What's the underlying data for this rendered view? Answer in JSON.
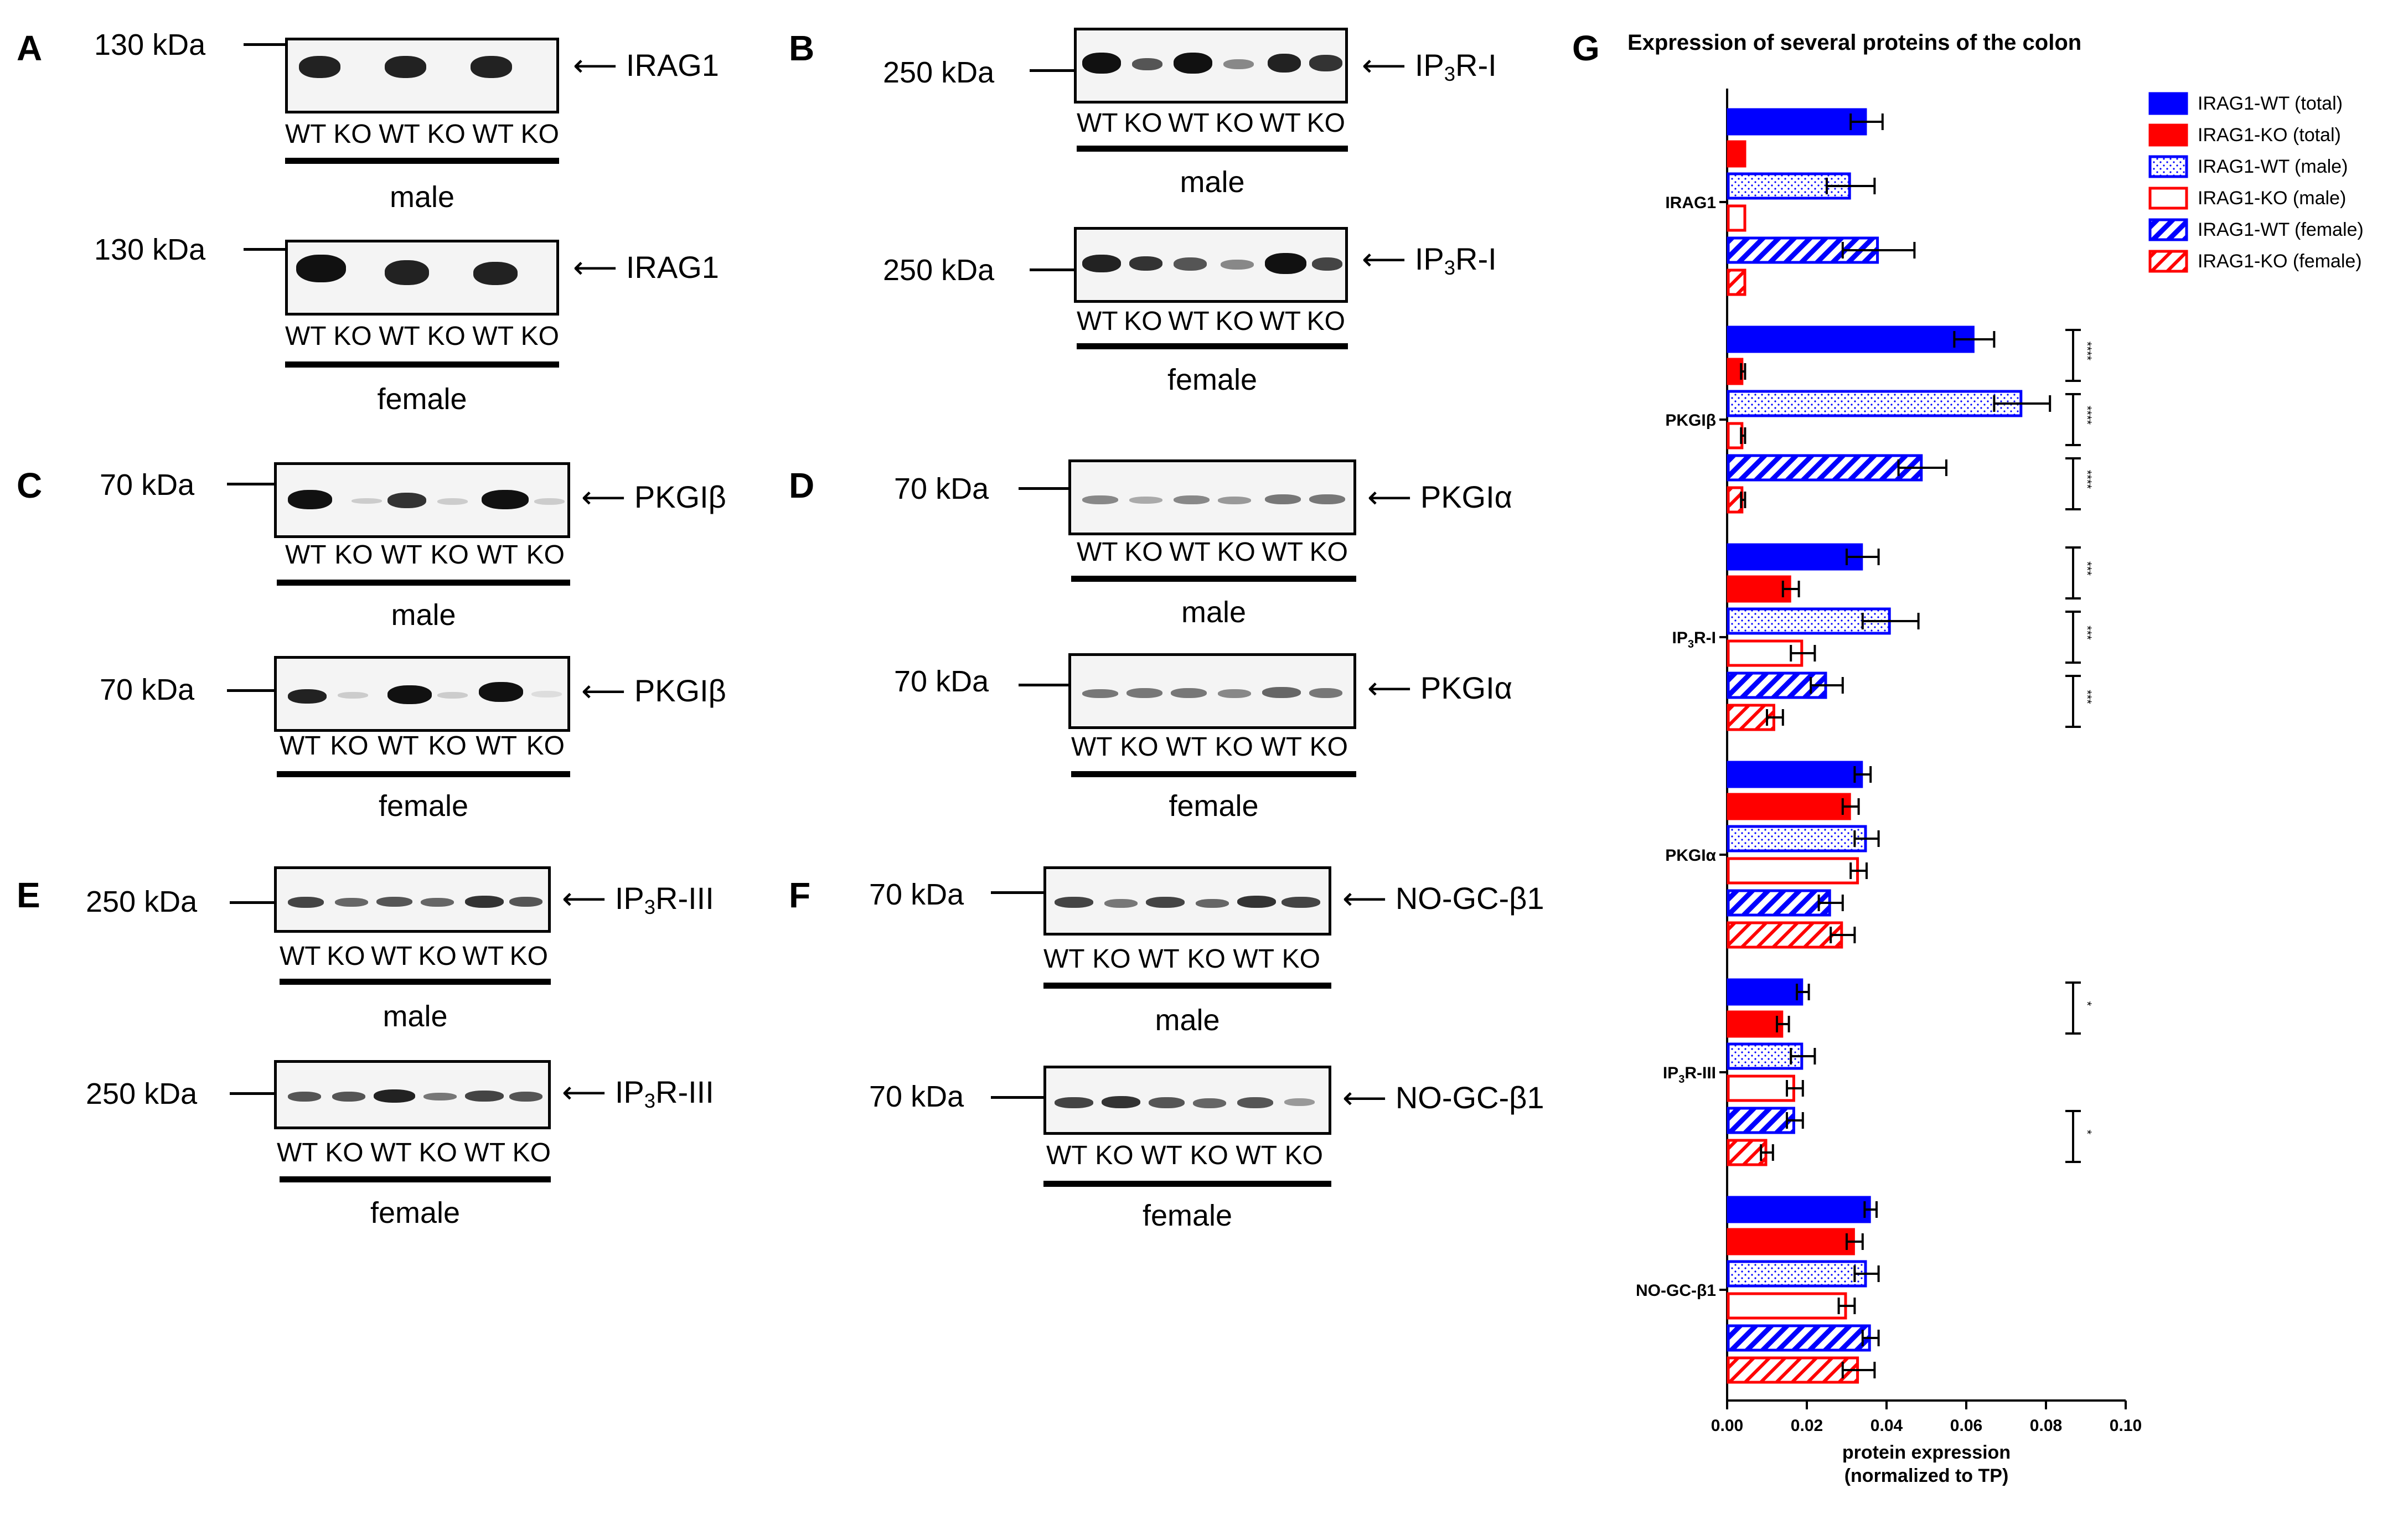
{
  "panels": [
    {
      "id": "A",
      "letter": "A",
      "kda": "130 kDa",
      "target": "IRAG1",
      "male_lanes": [
        "WT",
        "KO",
        "WT",
        "KO",
        "WT",
        "KO"
      ],
      "female_lanes": [
        "WT",
        "KO",
        "WT",
        "KO",
        "WT",
        "KO"
      ],
      "male_label": "male",
      "female_label": "female",
      "female_kda": "130 kDa"
    },
    {
      "id": "B",
      "letter": "B",
      "kda": "250 kDa",
      "target_main": "IP",
      "target_sub": "3",
      "target_tail": "R-I",
      "male_lanes": [
        "WT",
        "KO",
        "WT",
        "KO",
        "WT",
        "KO"
      ],
      "female_lanes": [
        "WT",
        "KO",
        "WT",
        "KO",
        "WT",
        "KO"
      ],
      "male_label": "male",
      "female_label": "female",
      "female_kda": "250 kDa"
    },
    {
      "id": "C",
      "letter": "C",
      "kda": "70 kDa",
      "target": "PKGIβ",
      "male_lanes": [
        "WT",
        "KO",
        "WT",
        "KO",
        "WT",
        "KO"
      ],
      "female_lanes": [
        "WT",
        "KO",
        "WT",
        "KO",
        "WT",
        "KO"
      ],
      "male_label": "male",
      "female_label": "female",
      "female_kda": "70 kDa"
    },
    {
      "id": "D",
      "letter": "D",
      "kda": "70 kDa",
      "target": "PKGIα",
      "male_lanes": [
        "WT",
        "KO",
        "WT",
        "KO",
        "WT",
        "KO"
      ],
      "female_lanes": [
        "WT",
        "KO",
        "WT",
        "KO",
        "WT",
        "KO"
      ],
      "male_label": "male",
      "female_label": "female",
      "female_kda": "70 kDa"
    },
    {
      "id": "E",
      "letter": "E",
      "kda": "250 kDa",
      "target_main": "IP",
      "target_sub": "3",
      "target_tail": "R-III",
      "male_lanes": [
        "WT",
        "KO",
        "WT",
        "KO",
        "WT",
        "KO"
      ],
      "female_lanes": [
        "WT",
        "KO",
        "WT",
        "KO",
        "WT",
        "KO"
      ],
      "male_label": "male",
      "female_label": "female",
      "female_kda": "250 kDa"
    },
    {
      "id": "F",
      "letter": "F",
      "kda": "70 kDa",
      "target": "NO-GC-β1",
      "male_lanes": [
        "WT",
        "KO",
        "WT",
        "KO",
        "WT",
        "KO"
      ],
      "female_lanes": [
        "WT",
        "KO",
        "WT",
        "KO",
        "WT",
        "KO"
      ],
      "male_label": "male",
      "female_label": "female",
      "female_kda": "70 kDa"
    }
  ],
  "chart_letter": "G",
  "chart_data": {
    "type": "bar",
    "orientation": "horizontal",
    "title": "Expression of several proteins of the colon",
    "xlabel": "protein expression\n(normalized to TP)",
    "xlim": [
      0,
      0.1
    ],
    "xticks": [
      "0.00",
      "0.02",
      "0.04",
      "0.06",
      "0.08",
      "0.10"
    ],
    "categories": [
      "IRAG1",
      "PKGIβ",
      "IP3R-I",
      "PKGIα",
      "IP3R-III",
      "NO-GC-β1"
    ],
    "series": [
      {
        "name": "IRAG1-WT (total)",
        "color": "#0000ff",
        "style": "solid",
        "values": [
          0.035,
          0.062,
          0.034,
          0.034,
          0.019,
          0.036
        ],
        "errors": [
          0.004,
          0.005,
          0.004,
          0.002,
          0.0015,
          0.0015
        ]
      },
      {
        "name": "IRAG1-KO (total)",
        "color": "#ff0000",
        "style": "solid",
        "values": [
          0.0,
          0.004,
          0.016,
          0.031,
          0.014,
          0.032
        ],
        "errors": [
          0,
          0.0005,
          0.002,
          0.002,
          0.0015,
          0.002
        ]
      },
      {
        "name": "IRAG1-WT (male)",
        "color": "#0000ff",
        "style": "dotted",
        "values": [
          0.031,
          0.074,
          0.041,
          0.035,
          0.019,
          0.035
        ],
        "errors": [
          0.006,
          0.007,
          0.007,
          0.003,
          0.003,
          0.003
        ]
      },
      {
        "name": "IRAG1-KO (male)",
        "color": "#ff0000",
        "style": "open",
        "values": [
          0.0,
          0.004,
          0.019,
          0.033,
          0.017,
          0.03
        ],
        "errors": [
          0,
          0.0005,
          0.003,
          0.002,
          0.002,
          0.002
        ]
      },
      {
        "name": "IRAG1-WT (female)",
        "color": "#0000ff",
        "style": "hatched",
        "values": [
          0.038,
          0.049,
          0.025,
          0.026,
          0.017,
          0.036
        ],
        "errors": [
          0.009,
          0.006,
          0.004,
          0.003,
          0.002,
          0.002
        ]
      },
      {
        "name": "IRAG1-KO (female)",
        "color": "#ff0000",
        "style": "hatched",
        "values": [
          0.0,
          0.004,
          0.012,
          0.029,
          0.01,
          0.033
        ],
        "errors": [
          0,
          0.0005,
          0.002,
          0.003,
          0.0015,
          0.004
        ]
      }
    ],
    "significance": [
      {
        "category": "PKGIβ",
        "pair": 0,
        "label": "****"
      },
      {
        "category": "PKGIβ",
        "pair": 1,
        "label": "****"
      },
      {
        "category": "PKGIβ",
        "pair": 2,
        "label": "****"
      },
      {
        "category": "IP3R-I",
        "pair": 0,
        "label": "***"
      },
      {
        "category": "IP3R-I",
        "pair": 1,
        "label": "***"
      },
      {
        "category": "IP3R-I",
        "pair": 2,
        "label": "***"
      },
      {
        "category": "IP3R-III",
        "pair": 0,
        "label": "*"
      },
      {
        "category": "IP3R-III",
        "pair": 2,
        "label": "*"
      }
    ],
    "legend_position": "top-right"
  }
}
